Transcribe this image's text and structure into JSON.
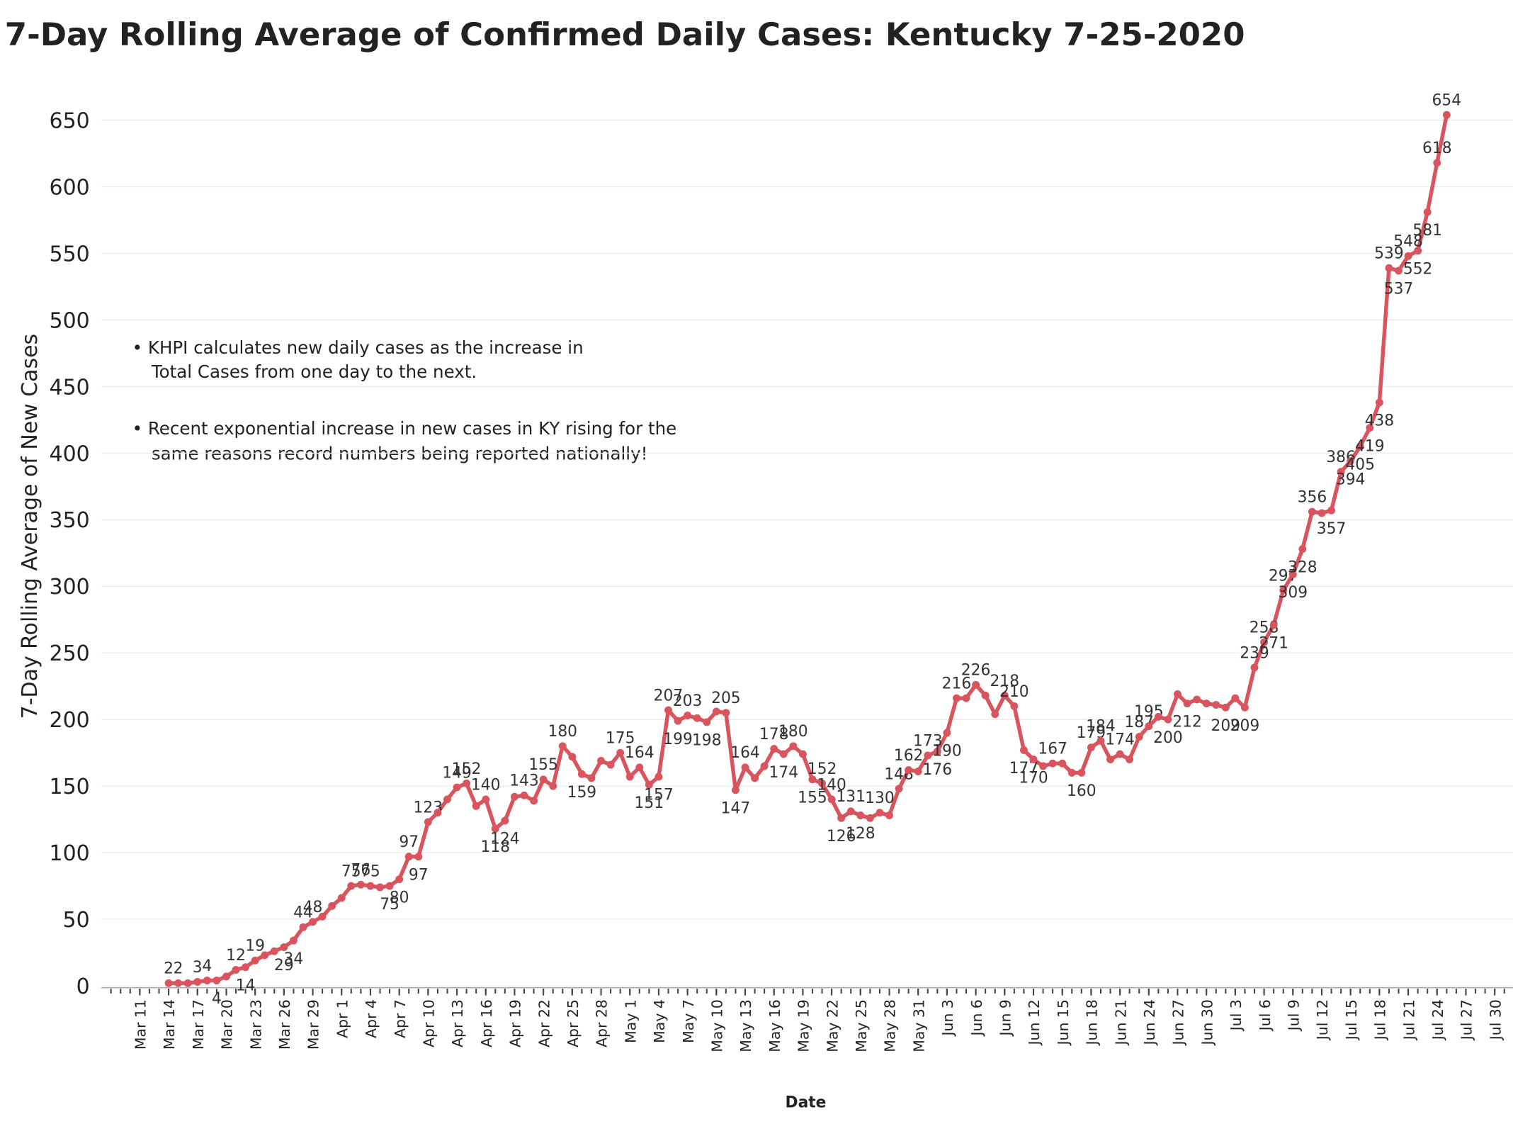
{
  "chart_data": {
    "type": "line",
    "title": "7-Day Rolling Average of Confirmed Daily  Cases:  Kentucky 7-25-2020",
    "x_label": "Date",
    "y_label": "7-Day Rolling  Average of New Cases",
    "annotations": [
      "• KHPI calculates new daily cases as the increase in",
      "Total Cases from one day to the next.",
      "• Recent  exponential increase in new cases in KY rising for the",
      "same reasons record numbers being reported nationally!"
    ],
    "color": "#d9545c",
    "grid": true,
    "ylim": [
      0,
      680
    ],
    "yticks": [
      0,
      50,
      100,
      150,
      200,
      250,
      300,
      350,
      400,
      450,
      500,
      550,
      600,
      650
    ],
    "xlim": [
      "Mar 8",
      "Jul 31"
    ],
    "xticks": [
      "Mar 11",
      "Mar 14",
      "Mar 17",
      "Mar 20",
      "Mar 23",
      "Mar 26",
      "Mar 29",
      "Apr 1",
      "Apr 4",
      "Apr 7",
      "Apr 10",
      "Apr 13",
      "Apr 16",
      "Apr 19",
      "Apr 22",
      "Apr 25",
      "Apr 28",
      "May 1",
      "May 4",
      "May 7",
      "May 10",
      "May 13",
      "May 16",
      "May 19",
      "May 22",
      "May 25",
      "May 28",
      "May 31",
      "Jun 3",
      "Jun 6",
      "Jun 9",
      "Jun 12",
      "Jun 15",
      "Jun 18",
      "Jun 21",
      "Jun 24",
      "Jun 27",
      "Jun 30",
      "Jul 3",
      "Jul 6",
      "Jul 9",
      "Jul 12",
      "Jul 15",
      "Jul 18",
      "Jul 21",
      "Jul 24",
      "Jul 27",
      "Jul 30"
    ],
    "x": [
      "Mar 14",
      "Mar 15",
      "Mar 16",
      "Mar 17",
      "Mar 18",
      "Mar 19",
      "Mar 20",
      "Mar 21",
      "Mar 22",
      "Mar 23",
      "Mar 24",
      "Mar 25",
      "Mar 26",
      "Mar 27",
      "Mar 28",
      "Mar 29",
      "Mar 30",
      "Mar 31",
      "Apr 1",
      "Apr 2",
      "Apr 3",
      "Apr 4",
      "Apr 5",
      "Apr 6",
      "Apr 7",
      "Apr 8",
      "Apr 9",
      "Apr 10",
      "Apr 11",
      "Apr 12",
      "Apr 13",
      "Apr 14",
      "Apr 15",
      "Apr 16",
      "Apr 17",
      "Apr 18",
      "Apr 19",
      "Apr 20",
      "Apr 21",
      "Apr 22",
      "Apr 23",
      "Apr 24",
      "Apr 25",
      "Apr 26",
      "Apr 27",
      "Apr 28",
      "Apr 29",
      "Apr 30",
      "May 1",
      "May 2",
      "May 3",
      "May 4",
      "May 5",
      "May 6",
      "May 7",
      "May 8",
      "May 9",
      "May 10",
      "May 11",
      "May 12",
      "May 13",
      "May 14",
      "May 15",
      "May 16",
      "May 17",
      "May 18",
      "May 19",
      "May 20",
      "May 21",
      "May 22",
      "May 23",
      "May 24",
      "May 25",
      "May 26",
      "May 27",
      "May 28",
      "May 29",
      "May 30",
      "May 31",
      "Jun 1",
      "Jun 2",
      "Jun 3",
      "Jun 4",
      "Jun 5",
      "Jun 6",
      "Jun 7",
      "Jun 8",
      "Jun 9",
      "Jun 10",
      "Jun 11",
      "Jun 12",
      "Jun 13",
      "Jun 14",
      "Jun 15",
      "Jun 16",
      "Jun 17",
      "Jun 18",
      "Jun 19",
      "Jun 20",
      "Jun 21",
      "Jun 22",
      "Jun 23",
      "Jun 24",
      "Jun 25",
      "Jun 26",
      "Jun 27",
      "Jun 28",
      "Jun 29",
      "Jun 30",
      "Jul 1",
      "Jul 2",
      "Jul 3",
      "Jul 4",
      "Jul 5",
      "Jul 6",
      "Jul 7",
      "Jul 8",
      "Jul 9",
      "Jul 10",
      "Jul 11",
      "Jul 12",
      "Jul 13",
      "Jul 14",
      "Jul 15",
      "Jul 16",
      "Jul 17",
      "Jul 18",
      "Jul 19",
      "Jul 20",
      "Jul 21",
      "Jul 22",
      "Jul 23",
      "Jul 24",
      "Jul 25"
    ],
    "values": [
      2,
      2,
      2,
      3,
      4,
      4,
      7,
      12,
      14,
      19,
      23,
      26,
      29,
      34,
      44,
      48,
      52,
      60,
      66,
      75,
      76,
      75,
      74,
      75,
      80,
      97,
      97,
      123,
      130,
      140,
      149,
      152,
      135,
      140,
      118,
      124,
      142,
      143,
      139,
      155,
      150,
      180,
      172,
      159,
      156,
      169,
      166,
      175,
      157,
      164,
      151,
      157,
      207,
      199,
      203,
      201,
      198,
      206,
      205,
      147,
      164,
      156,
      165,
      178,
      174,
      180,
      174,
      155,
      152,
      140,
      126,
      131,
      128,
      126,
      130,
      128,
      148,
      162,
      161,
      173,
      176,
      190,
      216,
      216,
      226,
      218,
      204,
      218,
      210,
      177,
      170,
      165,
      167,
      167,
      160,
      160,
      179,
      184,
      170,
      174,
      170,
      187,
      195,
      202,
      200,
      219,
      212,
      215,
      212,
      211,
      209,
      216,
      209,
      239,
      258,
      271,
      297,
      309,
      328,
      356,
      355,
      357,
      386,
      394,
      405,
      419,
      438,
      539,
      537,
      548,
      552,
      581,
      618,
      654
    ],
    "value_labels": [
      "2",
      "2",
      null,
      "3",
      "4",
      "4",
      null,
      "12",
      "14",
      "19",
      null,
      null,
      "29",
      "34",
      "44",
      "48",
      null,
      null,
      null,
      "75",
      "76",
      "75",
      null,
      "75",
      "80",
      "97",
      "97",
      "123",
      null,
      null,
      "149",
      "152",
      null,
      "140",
      "118",
      "124",
      null,
      "143",
      null,
      "155",
      null,
      "180",
      null,
      "159",
      null,
      null,
      null,
      "175",
      null,
      "164",
      "151",
      "157",
      "207",
      "199",
      "203",
      null,
      "198",
      null,
      "205",
      "147",
      "164",
      null,
      null,
      "178",
      "174",
      "180",
      null,
      "155",
      "152",
      "140",
      "126",
      "131",
      "128",
      null,
      "130",
      null,
      "148",
      "162",
      null,
      "173",
      "176",
      "190",
      "216",
      null,
      "226",
      null,
      null,
      "218",
      "210",
      "177",
      "170",
      null,
      "167",
      null,
      null,
      "160",
      "179",
      "184",
      null,
      "174",
      null,
      "187",
      "195",
      null,
      "200",
      null,
      "212",
      null,
      null,
      null,
      "209",
      null,
      "209",
      "239",
      "258",
      "271",
      "297",
      "309",
      "328",
      "356",
      null,
      "357",
      "386",
      "394",
      "405",
      "419",
      "438",
      "539",
      "537",
      "548",
      "552",
      "581",
      "618",
      "654"
    ]
  }
}
